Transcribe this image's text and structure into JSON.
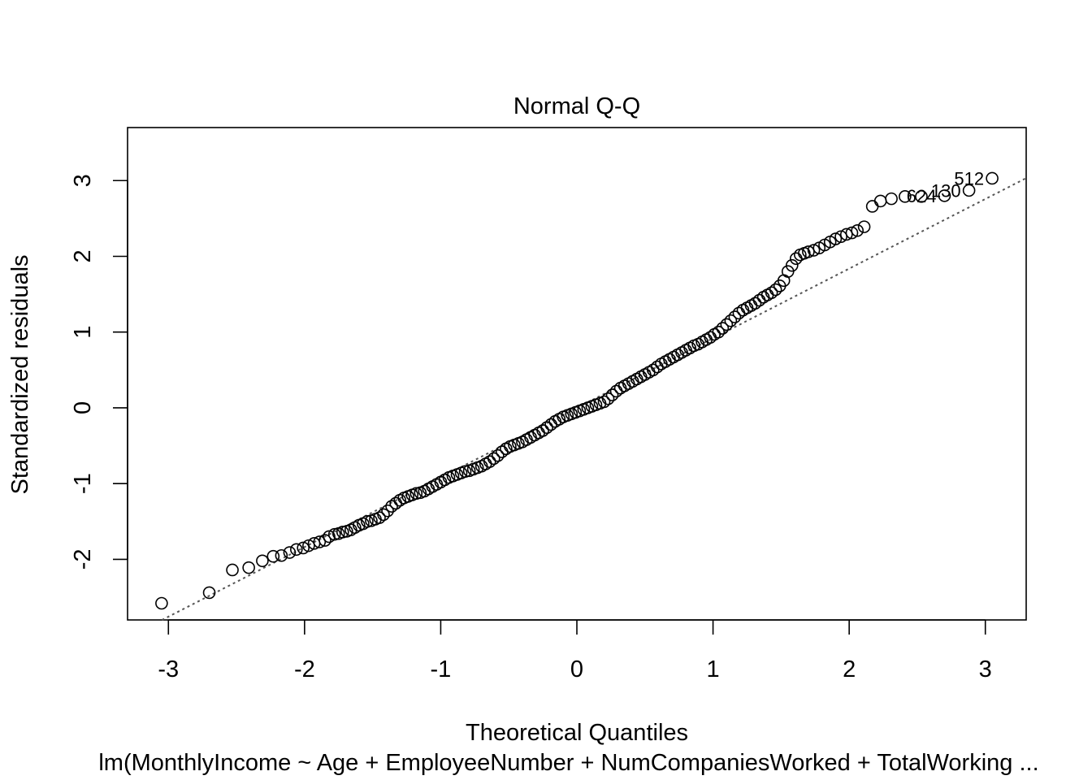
{
  "chart_data": {
    "type": "scatter",
    "title": "Normal Q-Q",
    "xlabel": "Theoretical Quantiles",
    "ylabel": "Standardized residuals",
    "subtitle": "lm(MonthlyIncome ~ Age + EmployeeNumber + NumCompaniesWorked + TotalWorking ...",
    "xlim": [
      -3.3,
      3.3
    ],
    "ylim": [
      -2.8,
      3.7
    ],
    "x_ticks": [
      -3,
      -2,
      -1,
      0,
      1,
      2,
      3
    ],
    "y_ticks": [
      -2,
      -1,
      0,
      1,
      2,
      3
    ],
    "reference_line": {
      "style": "dotted",
      "slope": 0.919,
      "intercept": 0.0
    },
    "annotations": [
      {
        "label": "512",
        "x": 3.05,
        "y": 3.03
      },
      {
        "label": "130",
        "x": 2.88,
        "y": 2.87
      },
      {
        "label": "624",
        "x": 2.7,
        "y": 2.8
      }
    ],
    "grid": false,
    "legend": "none",
    "marker": "open-circle",
    "points": [
      [
        -3.05,
        -2.58
      ],
      [
        -2.7,
        -2.44
      ],
      [
        -2.53,
        -2.14
      ],
      [
        -2.41,
        -2.11
      ],
      [
        -2.31,
        -2.02
      ],
      [
        -2.23,
        -1.96
      ],
      [
        -2.17,
        -1.95
      ],
      [
        -2.11,
        -1.91
      ],
      [
        -2.06,
        -1.87
      ],
      [
        -2.01,
        -1.85
      ],
      [
        -1.97,
        -1.82
      ],
      [
        -1.93,
        -1.79
      ],
      [
        -1.89,
        -1.77
      ],
      [
        -1.85,
        -1.75
      ],
      [
        -1.82,
        -1.7
      ],
      [
        -1.78,
        -1.67
      ],
      [
        -1.75,
        -1.66
      ],
      [
        -1.72,
        -1.64
      ],
      [
        -1.69,
        -1.63
      ],
      [
        -1.66,
        -1.61
      ],
      [
        -1.63,
        -1.58
      ],
      [
        -1.6,
        -1.55
      ],
      [
        -1.57,
        -1.53
      ],
      [
        -1.54,
        -1.5
      ],
      [
        -1.51,
        -1.49
      ],
      [
        -1.48,
        -1.47
      ],
      [
        -1.45,
        -1.45
      ],
      [
        -1.42,
        -1.41
      ],
      [
        -1.39,
        -1.36
      ],
      [
        -1.36,
        -1.3
      ],
      [
        -1.33,
        -1.26
      ],
      [
        -1.3,
        -1.22
      ],
      [
        -1.27,
        -1.19
      ],
      [
        -1.24,
        -1.17
      ],
      [
        -1.21,
        -1.15
      ],
      [
        -1.18,
        -1.13
      ],
      [
        -1.15,
        -1.12
      ],
      [
        -1.12,
        -1.1
      ],
      [
        -1.09,
        -1.07
      ],
      [
        -1.06,
        -1.04
      ],
      [
        -1.03,
        -1.01
      ],
      [
        -1.0,
        -0.98
      ],
      [
        -0.97,
        -0.95
      ],
      [
        -0.94,
        -0.92
      ],
      [
        -0.91,
        -0.9
      ],
      [
        -0.88,
        -0.88
      ],
      [
        -0.85,
        -0.86
      ],
      [
        -0.82,
        -0.84
      ],
      [
        -0.79,
        -0.83
      ],
      [
        -0.76,
        -0.81
      ],
      [
        -0.73,
        -0.79
      ],
      [
        -0.7,
        -0.77
      ],
      [
        -0.67,
        -0.74
      ],
      [
        -0.64,
        -0.71
      ],
      [
        -0.61,
        -0.67
      ],
      [
        -0.58,
        -0.63
      ],
      [
        -0.55,
        -0.58
      ],
      [
        -0.52,
        -0.54
      ],
      [
        -0.49,
        -0.51
      ],
      [
        -0.46,
        -0.49
      ],
      [
        -0.43,
        -0.47
      ],
      [
        -0.4,
        -0.45
      ],
      [
        -0.37,
        -0.42
      ],
      [
        -0.34,
        -0.39
      ],
      [
        -0.31,
        -0.36
      ],
      [
        -0.28,
        -0.33
      ],
      [
        -0.25,
        -0.3
      ],
      [
        -0.22,
        -0.26
      ],
      [
        -0.19,
        -0.22
      ],
      [
        -0.16,
        -0.18
      ],
      [
        -0.13,
        -0.15
      ],
      [
        -0.1,
        -0.12
      ],
      [
        -0.07,
        -0.1
      ],
      [
        -0.04,
        -0.08
      ],
      [
        -0.01,
        -0.06
      ],
      [
        0.02,
        -0.04
      ],
      [
        0.05,
        -0.02
      ],
      [
        0.08,
        0.0
      ],
      [
        0.11,
        0.02
      ],
      [
        0.14,
        0.04
      ],
      [
        0.17,
        0.06
      ],
      [
        0.2,
        0.08
      ],
      [
        0.23,
        0.12
      ],
      [
        0.26,
        0.17
      ],
      [
        0.29,
        0.22
      ],
      [
        0.32,
        0.26
      ],
      [
        0.35,
        0.29
      ],
      [
        0.38,
        0.32
      ],
      [
        0.41,
        0.35
      ],
      [
        0.44,
        0.38
      ],
      [
        0.47,
        0.41
      ],
      [
        0.5,
        0.44
      ],
      [
        0.53,
        0.47
      ],
      [
        0.56,
        0.5
      ],
      [
        0.59,
        0.54
      ],
      [
        0.62,
        0.58
      ],
      [
        0.65,
        0.61
      ],
      [
        0.68,
        0.64
      ],
      [
        0.71,
        0.67
      ],
      [
        0.74,
        0.7
      ],
      [
        0.77,
        0.73
      ],
      [
        0.8,
        0.76
      ],
      [
        0.83,
        0.79
      ],
      [
        0.86,
        0.82
      ],
      [
        0.89,
        0.84
      ],
      [
        0.92,
        0.87
      ],
      [
        0.95,
        0.9
      ],
      [
        0.98,
        0.93
      ],
      [
        1.01,
        0.97
      ],
      [
        1.04,
        1.0
      ],
      [
        1.07,
        1.05
      ],
      [
        1.1,
        1.1
      ],
      [
        1.13,
        1.15
      ],
      [
        1.16,
        1.2
      ],
      [
        1.19,
        1.25
      ],
      [
        1.22,
        1.29
      ],
      [
        1.25,
        1.32
      ],
      [
        1.28,
        1.35
      ],
      [
        1.31,
        1.38
      ],
      [
        1.34,
        1.42
      ],
      [
        1.37,
        1.46
      ],
      [
        1.4,
        1.49
      ],
      [
        1.43,
        1.52
      ],
      [
        1.46,
        1.56
      ],
      [
        1.49,
        1.61
      ],
      [
        1.52,
        1.68
      ],
      [
        1.55,
        1.8
      ],
      [
        1.58,
        1.88
      ],
      [
        1.61,
        1.97
      ],
      [
        1.64,
        2.02
      ],
      [
        1.67,
        2.04
      ],
      [
        1.7,
        2.06
      ],
      [
        1.74,
        2.08
      ],
      [
        1.78,
        2.11
      ],
      [
        1.82,
        2.15
      ],
      [
        1.86,
        2.19
      ],
      [
        1.9,
        2.23
      ],
      [
        1.94,
        2.26
      ],
      [
        1.98,
        2.29
      ],
      [
        2.02,
        2.31
      ],
      [
        2.06,
        2.34
      ],
      [
        2.11,
        2.39
      ],
      [
        2.17,
        2.66
      ],
      [
        2.23,
        2.73
      ],
      [
        2.31,
        2.76
      ],
      [
        2.41,
        2.79
      ],
      [
        2.53,
        2.79
      ],
      [
        2.7,
        2.8
      ],
      [
        2.88,
        2.87
      ],
      [
        3.05,
        3.03
      ]
    ]
  }
}
